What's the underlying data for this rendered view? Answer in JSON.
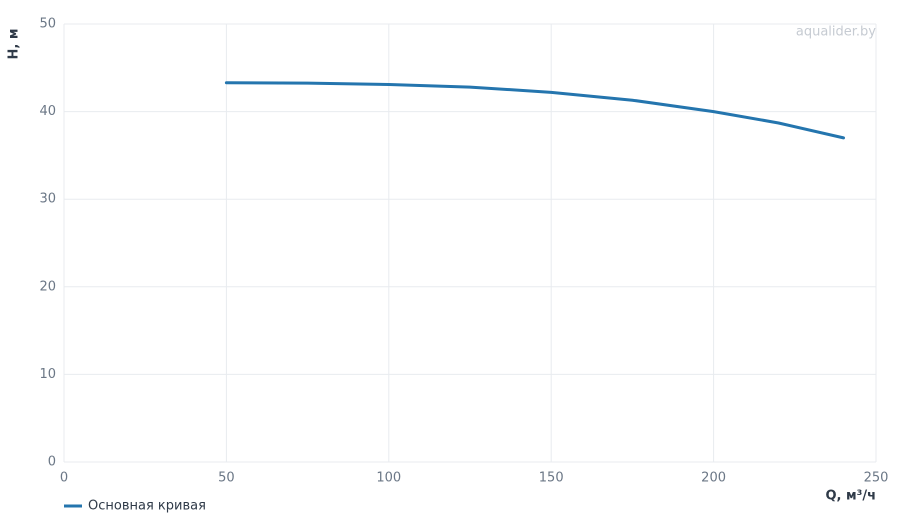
{
  "chart_data": {
    "type": "line",
    "x_label": "Q, м³/ч",
    "y_label": "H, м",
    "watermark": "aqualider.by",
    "x": [
      50,
      75,
      100,
      125,
      150,
      175,
      200,
      220,
      240
    ],
    "series": [
      {
        "name": "Основная кривая",
        "color": "#2475ae",
        "values": [
          43.3,
          43.25,
          43.1,
          42.8,
          42.2,
          41.3,
          40.0,
          38.7,
          37.0
        ]
      }
    ],
    "xlim": [
      0,
      250
    ],
    "xticks": [
      0,
      50,
      100,
      150,
      200,
      250
    ],
    "ylim": [
      0,
      50
    ],
    "yticks": [
      0,
      10,
      20,
      30,
      40,
      50
    ],
    "grid": true,
    "legend": "bottom-left"
  }
}
